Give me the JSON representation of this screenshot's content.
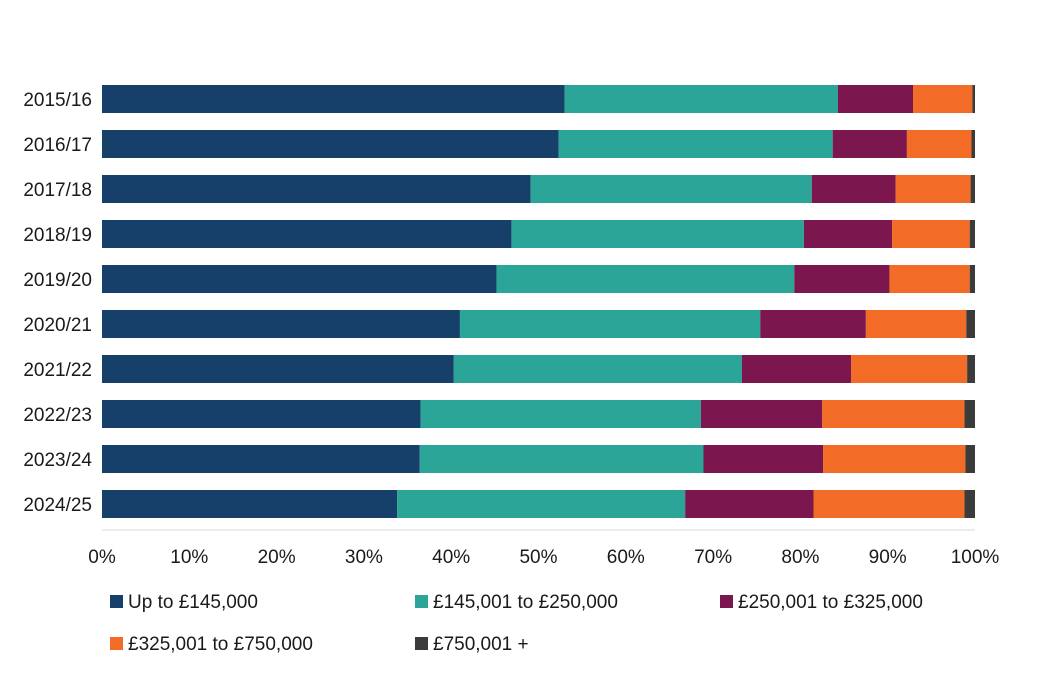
{
  "chart_data": {
    "type": "bar",
    "orientation": "horizontal",
    "stacked": true,
    "percent_stacked": true,
    "categories": [
      "2015/16",
      "2016/17",
      "2017/18",
      "2018/19",
      "2019/20",
      "2020/21",
      "2021/22",
      "2022/23",
      "2023/24",
      "2024/25"
    ],
    "series": [
      {
        "name": "Up to £145,000",
        "color": "#16406a",
        "values": [
          53,
          52.3,
          49.1,
          46.9,
          45.2,
          41,
          40.3,
          36.5,
          36.4,
          33.8
        ]
      },
      {
        "name": "£145,001 to £250,000",
        "color": "#2aa597",
        "values": [
          31.3,
          31.4,
          32.2,
          33.5,
          34.1,
          34.4,
          33,
          32.1,
          32.5,
          33
        ]
      },
      {
        "name": "£250,001 to £325,000",
        "color": "#7b174e",
        "values": [
          8.6,
          8.5,
          9.6,
          10.1,
          10.9,
          12.1,
          12.5,
          13.9,
          13.7,
          14.7
        ]
      },
      {
        "name": "£325,001 to £750,000",
        "color": "#f26b27",
        "values": [
          6.8,
          7.4,
          8.6,
          8.9,
          9.2,
          11.5,
          13.3,
          16.3,
          16.3,
          17.3
        ]
      },
      {
        "name": "£750,001 +",
        "color": "#3b3b3b",
        "values": [
          0.3,
          0.4,
          0.5,
          0.6,
          0.6,
          1,
          0.9,
          1.2,
          1.1,
          1.2
        ]
      }
    ],
    "xlim": [
      0,
      100
    ],
    "x_ticks": [
      "0%",
      "10%",
      "20%",
      "30%",
      "40%",
      "50%",
      "60%",
      "70%",
      "80%",
      "90%",
      "100%"
    ],
    "title": "",
    "xlabel": "",
    "ylabel": "",
    "grid": false,
    "legend_position": "bottom"
  }
}
